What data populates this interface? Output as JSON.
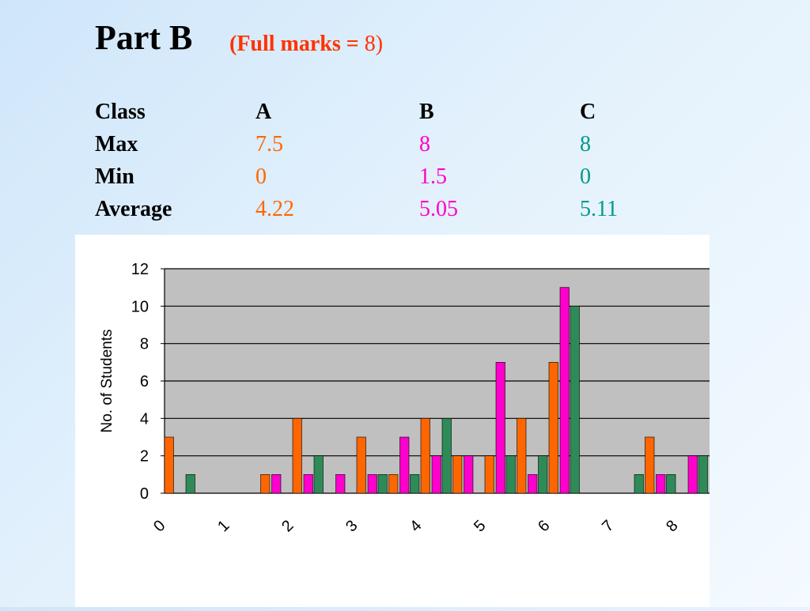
{
  "slide": {
    "title": "Part B",
    "subtitle_bold": "(Full marks = ",
    "subtitle_value": "8",
    "subtitle_close": ")"
  },
  "stats": {
    "header": {
      "label": "Class",
      "a": "A",
      "b": "B",
      "c": "C"
    },
    "rows": [
      {
        "label": "Max",
        "a": "7.5",
        "b": "8",
        "c": "8"
      },
      {
        "label": "Min",
        "a": "0",
        "b": "1.5",
        "c": "0"
      },
      {
        "label": "Average",
        "a": "4.22",
        "b": "5.05",
        "c": "5.11"
      }
    ]
  },
  "colors": {
    "classA": "#ff6600",
    "classB": "#ff00cc",
    "classC": "#2e8b57",
    "plot_bg": "#c0c0c0"
  },
  "chart_data": {
    "type": "bar",
    "ylabel": "No. of Students",
    "ylim": [
      0,
      12
    ],
    "yticks": [
      0,
      2,
      4,
      6,
      8,
      10,
      12
    ],
    "categories": [
      "0",
      "0.5",
      "1",
      "1.5",
      "2",
      "2.5",
      "3",
      "3.5",
      "4",
      "4.5",
      "5",
      "5.5",
      "6",
      "6.5",
      "7",
      "7.5",
      "8"
    ],
    "xtick_labels": [
      "0",
      "1",
      "2",
      "3",
      "4",
      "5",
      "6",
      "7",
      "8"
    ],
    "grid": true,
    "series": [
      {
        "values": [
          3,
          0,
          0,
          1,
          4,
          0,
          3,
          1,
          4,
          2,
          2,
          4,
          7,
          0,
          0,
          3,
          0
        ]
      },
      {
        "values": [
          0,
          0,
          0,
          1,
          1,
          1,
          1,
          3,
          2,
          2,
          7,
          1,
          11,
          0,
          0,
          1,
          2
        ]
      },
      {
        "values": [
          1,
          0,
          0,
          0,
          2,
          0,
          1,
          1,
          4,
          0,
          2,
          2,
          10,
          0,
          1,
          1,
          2
        ]
      }
    ]
  }
}
